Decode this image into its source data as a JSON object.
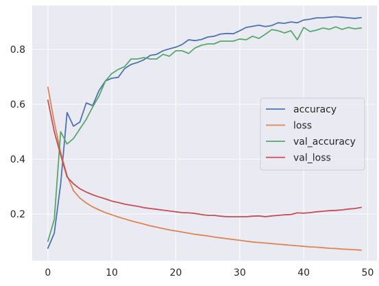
{
  "chart_data": {
    "type": "line",
    "title": "",
    "xlabel": "",
    "ylabel": "",
    "xlim": [
      -2.45,
      51.45
    ],
    "ylim": [
      0.03,
      0.96
    ],
    "x_ticks": [
      0,
      10,
      20,
      30,
      40,
      50
    ],
    "y_ticks": [
      0.2,
      0.4,
      0.6,
      0.8
    ],
    "grid": true,
    "background": "#EAEAF2",
    "grid_color": "#ffffff",
    "legend_position": "center-right",
    "x": [
      0,
      1,
      2,
      3,
      4,
      5,
      6,
      7,
      8,
      9,
      10,
      11,
      12,
      13,
      14,
      15,
      16,
      17,
      18,
      19,
      20,
      21,
      22,
      23,
      24,
      25,
      26,
      27,
      28,
      29,
      30,
      31,
      32,
      33,
      34,
      35,
      36,
      37,
      38,
      39,
      40,
      41,
      42,
      43,
      44,
      45,
      46,
      47,
      48,
      49
    ],
    "series": [
      {
        "name": "accuracy",
        "color": "#4C72B0",
        "values": [
          0.075,
          0.13,
          0.31,
          0.57,
          0.52,
          0.535,
          0.605,
          0.595,
          0.65,
          0.685,
          0.695,
          0.698,
          0.73,
          0.745,
          0.752,
          0.762,
          0.778,
          0.782,
          0.795,
          0.802,
          0.808,
          0.818,
          0.835,
          0.832,
          0.836,
          0.845,
          0.848,
          0.856,
          0.858,
          0.857,
          0.868,
          0.88,
          0.884,
          0.888,
          0.883,
          0.887,
          0.897,
          0.895,
          0.9,
          0.897,
          0.907,
          0.91,
          0.915,
          0.915,
          0.917,
          0.919,
          0.917,
          0.915,
          0.913,
          0.916
        ]
      },
      {
        "name": "loss",
        "color": "#DD8452",
        "values": [
          0.662,
          0.535,
          0.425,
          0.34,
          0.285,
          0.258,
          0.24,
          0.226,
          0.215,
          0.205,
          0.197,
          0.189,
          0.182,
          0.175,
          0.169,
          0.163,
          0.157,
          0.152,
          0.147,
          0.142,
          0.138,
          0.134,
          0.13,
          0.126,
          0.123,
          0.12,
          0.116,
          0.113,
          0.11,
          0.107,
          0.104,
          0.101,
          0.098,
          0.096,
          0.094,
          0.092,
          0.09,
          0.088,
          0.086,
          0.084,
          0.082,
          0.08,
          0.079,
          0.077,
          0.075,
          0.074,
          0.072,
          0.071,
          0.07,
          0.068
        ]
      },
      {
        "name": "val_accuracy",
        "color": "#55A868",
        "values": [
          0.1,
          0.18,
          0.5,
          0.455,
          0.475,
          0.51,
          0.545,
          0.59,
          0.63,
          0.685,
          0.712,
          0.727,
          0.737,
          0.765,
          0.765,
          0.77,
          0.765,
          0.765,
          0.782,
          0.775,
          0.795,
          0.795,
          0.785,
          0.805,
          0.815,
          0.82,
          0.82,
          0.83,
          0.83,
          0.83,
          0.838,
          0.835,
          0.848,
          0.84,
          0.855,
          0.872,
          0.868,
          0.86,
          0.868,
          0.835,
          0.88,
          0.865,
          0.87,
          0.878,
          0.873,
          0.882,
          0.873,
          0.88,
          0.875,
          0.878
        ]
      },
      {
        "name": "val_loss",
        "color": "#C44E52",
        "values": [
          0.615,
          0.5,
          0.415,
          0.335,
          0.31,
          0.292,
          0.28,
          0.27,
          0.262,
          0.255,
          0.247,
          0.242,
          0.236,
          0.232,
          0.228,
          0.223,
          0.22,
          0.217,
          0.214,
          0.211,
          0.208,
          0.205,
          0.204,
          0.202,
          0.198,
          0.195,
          0.195,
          0.192,
          0.19,
          0.19,
          0.19,
          0.19,
          0.192,
          0.193,
          0.19,
          0.193,
          0.195,
          0.197,
          0.198,
          0.204,
          0.203,
          0.205,
          0.208,
          0.21,
          0.212,
          0.213,
          0.215,
          0.218,
          0.22,
          0.224
        ]
      }
    ]
  }
}
